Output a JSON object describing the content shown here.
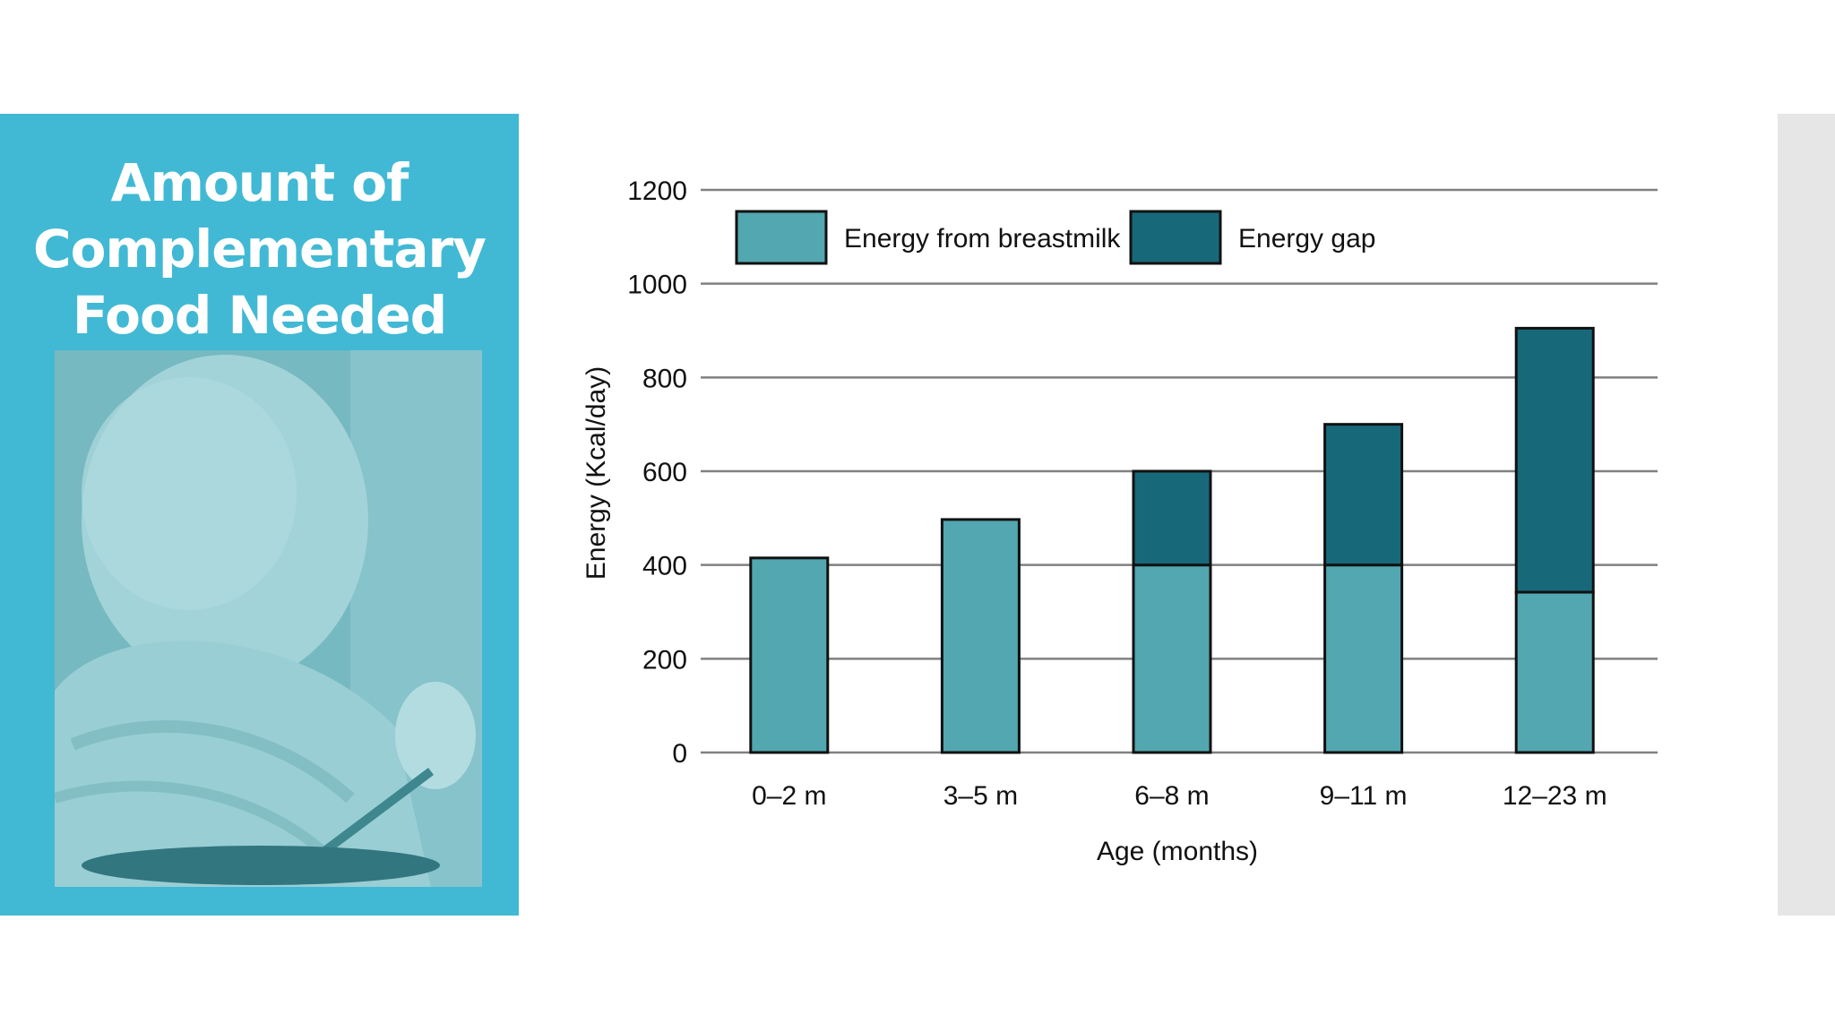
{
  "slide": {
    "title": "Amount of\nComplementary\nFood Needed"
  },
  "photo": {
    "icon": "baby-eating-photo",
    "tint": "#6aa9ad"
  },
  "colors": {
    "panel": "#41b9d4",
    "breastmilk": "#52a7b0",
    "gap": "#17697a",
    "grid": "#808080"
  },
  "chart_data": {
    "type": "bar",
    "stacked": true,
    "categories": [
      "0–2 m",
      "3–5 m",
      "6–8 m",
      "9–11 m",
      "12–23 m"
    ],
    "series": [
      {
        "name": "Energy from breastmilk",
        "values": [
          415,
          497,
          400,
          400,
          342
        ]
      },
      {
        "name": "Energy gap",
        "values": [
          0,
          0,
          200,
          300,
          563
        ]
      }
    ],
    "title": "",
    "xlabel": "Age (months)",
    "ylabel": "Energy (Kcal/day)",
    "ylim": [
      0,
      1200
    ],
    "yticks": [
      0,
      200,
      400,
      600,
      800,
      1000,
      1200
    ],
    "grid": true,
    "legend": "top-left"
  }
}
